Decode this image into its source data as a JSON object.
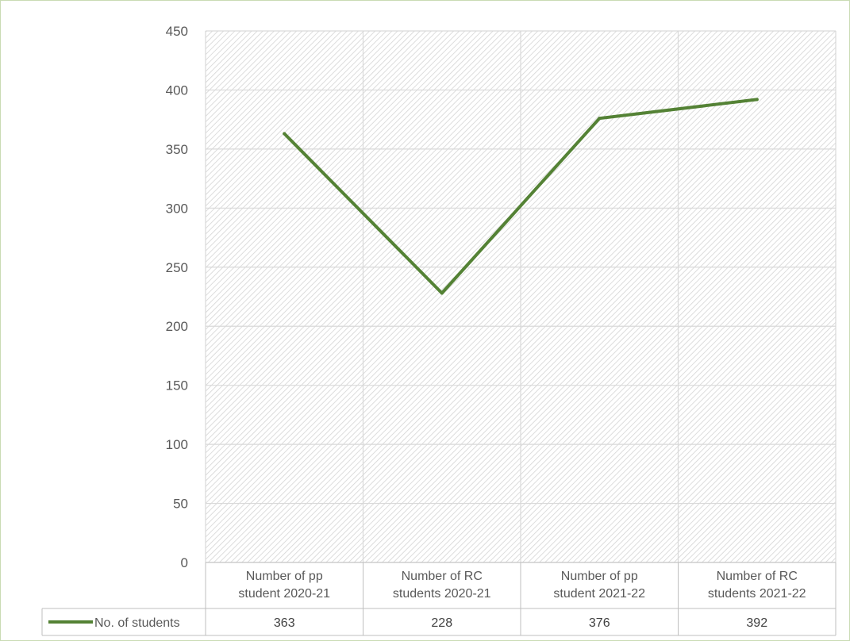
{
  "chart_data": {
    "type": "line",
    "categories": [
      [
        "Number of pp",
        "student 2020-21"
      ],
      [
        "Number of RC",
        "students 2020-21"
      ],
      [
        "Number of pp",
        "student 2021-22"
      ],
      [
        "Number of RC",
        "students 2021-22"
      ]
    ],
    "series": [
      {
        "name": "No. of students",
        "values": [
          363,
          228,
          376,
          392
        ],
        "color": "#548235"
      }
    ],
    "ylim": [
      0,
      450
    ],
    "yticks": [
      0,
      50,
      100,
      150,
      200,
      250,
      300,
      350,
      400,
      450
    ],
    "grid": true,
    "data_table": true,
    "plot_fill": "diagonal hatch",
    "title": "",
    "xlabel": "",
    "ylabel": ""
  }
}
